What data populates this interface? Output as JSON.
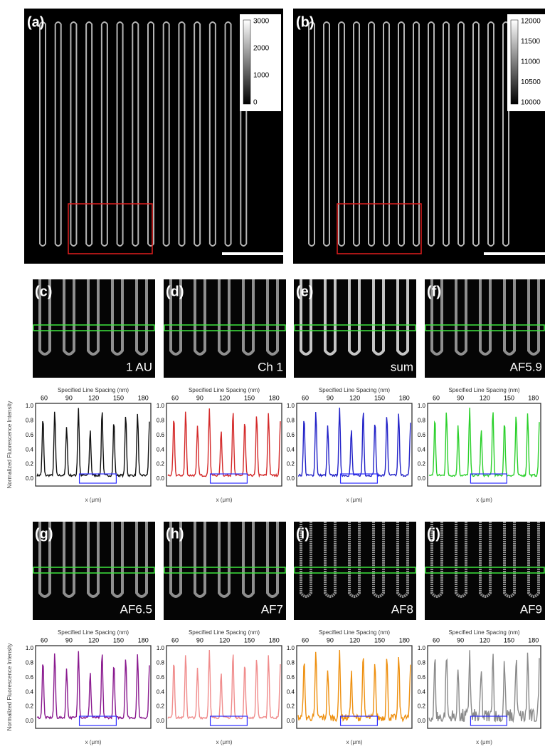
{
  "figure": {
    "overview": [
      {
        "label": "(a)",
        "colorbar_ticks": [
          "3000",
          "2000",
          "1000",
          "0"
        ]
      },
      {
        "label": "(b)",
        "colorbar_ticks": [
          "12000",
          "11500",
          "11000",
          "10500",
          "10000"
        ]
      }
    ],
    "panels": [
      {
        "label": "(c)",
        "tag": "1 AU",
        "color": "#111111"
      },
      {
        "label": "(d)",
        "tag": "Ch 1",
        "color": "#d42a2a"
      },
      {
        "label": "(e)",
        "tag": "sum",
        "color": "#2323c8"
      },
      {
        "label": "(f)",
        "tag": "AF5.9",
        "color": "#2bd02b"
      },
      {
        "label": "(g)",
        "tag": "AF6.5",
        "color": "#8a1a8f"
      },
      {
        "label": "(h)",
        "tag": "AF7",
        "color": "#f08c8c"
      },
      {
        "label": "(i)",
        "tag": "AF8",
        "color": "#ee9010"
      },
      {
        "label": "(j)",
        "tag": "AF9",
        "color": "#8a8a8a"
      }
    ],
    "plot": {
      "top_title": "Specified Line Spacing (nm)",
      "top_ticks": [
        "60",
        "90",
        "120",
        "150",
        "180"
      ],
      "y_ticks": [
        "1.0",
        "0.8",
        "0.6",
        "0.4",
        "0.2",
        "0.0"
      ],
      "x_label": "x (μm)",
      "y_label": "Normalized Fluorescence Intensity"
    }
  }
}
